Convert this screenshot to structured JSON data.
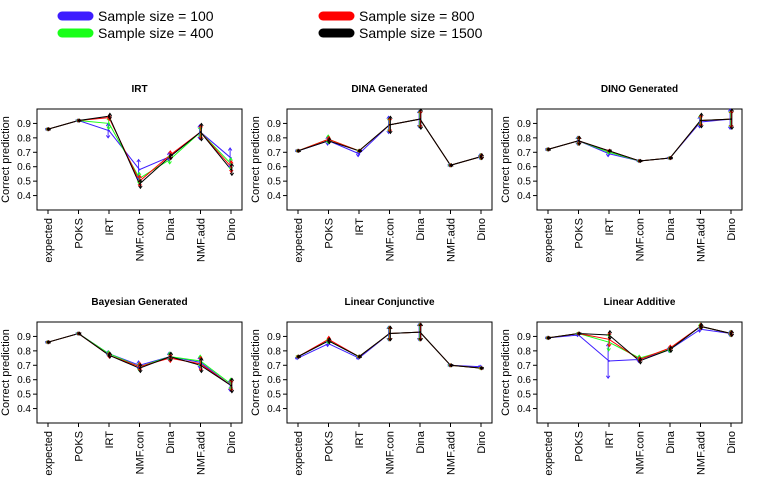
{
  "legend": {
    "items": [
      {
        "label": "Sample size = 100",
        "color": "#3d1dff"
      },
      {
        "label": "Sample size = 400",
        "color": "#19ff19"
      },
      {
        "label": "Sample size = 800",
        "color": "#ff0000"
      },
      {
        "label": "Sample size = 1500",
        "color": "#000000"
      }
    ]
  },
  "chart_data": [
    {
      "type": "line",
      "title": "IRT",
      "ylabel": "Correct prediction",
      "ylim": [
        0.3,
        1.0
      ],
      "yticks": [
        "0.4",
        "0.5",
        "0.6",
        "0.7",
        "0.8",
        "0.9"
      ],
      "categories": [
        "expected",
        "POKS",
        "IRT",
        "NMF.con",
        "Dina",
        "NMF.add",
        "Dino"
      ],
      "series": [
        {
          "name": "Sample size = 100",
          "values": [
            0.86,
            0.92,
            0.85,
            0.58,
            0.67,
            0.84,
            0.66
          ],
          "err": [
            0.01,
            0.01,
            0.05,
            0.07,
            0.03,
            0.05,
            0.07
          ]
        },
        {
          "name": "Sample size = 400",
          "values": [
            0.86,
            0.92,
            0.9,
            0.52,
            0.65,
            0.84,
            0.62
          ],
          "err": [
            0.01,
            0.01,
            0.04,
            0.04,
            0.03,
            0.04,
            0.04
          ]
        },
        {
          "name": "Sample size = 800",
          "values": [
            0.86,
            0.92,
            0.94,
            0.5,
            0.68,
            0.84,
            0.6
          ],
          "err": [
            0.01,
            0.01,
            0.02,
            0.04,
            0.03,
            0.05,
            0.04
          ]
        },
        {
          "name": "Sample size = 1500",
          "values": [
            0.86,
            0.92,
            0.95,
            0.48,
            0.67,
            0.84,
            0.58
          ],
          "err": [
            0.01,
            0.01,
            0.02,
            0.03,
            0.02,
            0.06,
            0.04
          ]
        }
      ]
    },
    {
      "type": "line",
      "title": "DINA Generated",
      "ylabel": "Correct prediction",
      "ylim": [
        0.3,
        1.0
      ],
      "yticks": [
        "0.4",
        "0.5",
        "0.6",
        "0.7",
        "0.8",
        "0.9"
      ],
      "categories": [
        "expected",
        "POKS",
        "IRT",
        "NMF.con",
        "Dina",
        "NMF.add",
        "Dino"
      ],
      "series": [
        {
          "name": "Sample size = 100",
          "values": [
            0.71,
            0.78,
            0.69,
            0.89,
            0.93,
            0.61,
            0.67
          ],
          "err": [
            0.01,
            0.03,
            0.02,
            0.06,
            0.06,
            0.01,
            0.02
          ]
        },
        {
          "name": "Sample size = 400",
          "values": [
            0.71,
            0.79,
            0.71,
            0.89,
            0.93,
            0.61,
            0.67
          ],
          "err": [
            0.01,
            0.03,
            0.01,
            0.05,
            0.06,
            0.01,
            0.02
          ]
        },
        {
          "name": "Sample size = 800",
          "values": [
            0.71,
            0.79,
            0.71,
            0.89,
            0.93,
            0.61,
            0.67
          ],
          "err": [
            0.01,
            0.02,
            0.01,
            0.05,
            0.06,
            0.01,
            0.02
          ]
        },
        {
          "name": "Sample size = 1500",
          "values": [
            0.71,
            0.78,
            0.71,
            0.89,
            0.93,
            0.61,
            0.67
          ],
          "err": [
            0.01,
            0.02,
            0.01,
            0.06,
            0.07,
            0.01,
            0.02
          ]
        }
      ]
    },
    {
      "type": "line",
      "title": "DINO Generated",
      "ylabel": "Correct prediction",
      "ylim": [
        0.3,
        1.0
      ],
      "yticks": [
        "0.4",
        "0.5",
        "0.6",
        "0.7",
        "0.8",
        "0.9"
      ],
      "categories": [
        "expected",
        "POKS",
        "IRT",
        "NMF.con",
        "Dina",
        "NMF.add",
        "Dino"
      ],
      "series": [
        {
          "name": "Sample size = 100",
          "values": [
            0.72,
            0.78,
            0.69,
            0.64,
            0.66,
            0.91,
            0.93
          ],
          "err": [
            0.01,
            0.03,
            0.02,
            0.01,
            0.01,
            0.04,
            0.07
          ]
        },
        {
          "name": "Sample size = 400",
          "values": [
            0.72,
            0.78,
            0.7,
            0.64,
            0.66,
            0.92,
            0.93
          ],
          "err": [
            0.01,
            0.03,
            0.01,
            0.01,
            0.01,
            0.04,
            0.06
          ]
        },
        {
          "name": "Sample size = 800",
          "values": [
            0.72,
            0.78,
            0.71,
            0.64,
            0.66,
            0.92,
            0.93
          ],
          "err": [
            0.01,
            0.03,
            0.01,
            0.01,
            0.01,
            0.04,
            0.06
          ]
        },
        {
          "name": "Sample size = 1500",
          "values": [
            0.72,
            0.78,
            0.71,
            0.64,
            0.66,
            0.92,
            0.93
          ],
          "err": [
            0.01,
            0.03,
            0.01,
            0.01,
            0.01,
            0.05,
            0.07
          ]
        }
      ]
    },
    {
      "type": "line",
      "title": "Bayesian Generated",
      "ylabel": "Correct prediction",
      "ylim": [
        0.3,
        1.0
      ],
      "yticks": [
        "0.4",
        "0.5",
        "0.6",
        "0.7",
        "0.8",
        "0.9"
      ],
      "categories": [
        "expected",
        "POKS",
        "IRT",
        "NMF.con",
        "Dina",
        "NMF.add",
        "Dino"
      ],
      "series": [
        {
          "name": "Sample size = 100",
          "values": [
            0.86,
            0.92,
            0.78,
            0.7,
            0.76,
            0.72,
            0.56
          ],
          "err": [
            0.01,
            0.01,
            0.02,
            0.03,
            0.03,
            0.04,
            0.04
          ]
        },
        {
          "name": "Sample size = 400",
          "values": [
            0.86,
            0.92,
            0.78,
            0.69,
            0.76,
            0.73,
            0.57
          ],
          "err": [
            0.01,
            0.01,
            0.02,
            0.03,
            0.03,
            0.04,
            0.04
          ]
        },
        {
          "name": "Sample size = 800",
          "values": [
            0.86,
            0.92,
            0.77,
            0.69,
            0.75,
            0.71,
            0.56
          ],
          "err": [
            0.01,
            0.01,
            0.02,
            0.03,
            0.03,
            0.05,
            0.04
          ]
        },
        {
          "name": "Sample size = 1500",
          "values": [
            0.86,
            0.92,
            0.77,
            0.68,
            0.76,
            0.7,
            0.56
          ],
          "err": [
            0.01,
            0.01,
            0.02,
            0.03,
            0.03,
            0.05,
            0.05
          ]
        }
      ]
    },
    {
      "type": "line",
      "title": "Linear Conjunctive",
      "ylabel": "Correct prediction",
      "ylim": [
        0.3,
        1.0
      ],
      "yticks": [
        "0.4",
        "0.5",
        "0.6",
        "0.7",
        "0.8",
        "0.9"
      ],
      "categories": [
        "expected",
        "POKS",
        "IRT",
        "NMF.con",
        "Dina",
        "NMF.add",
        "Dino"
      ],
      "series": [
        {
          "name": "Sample size = 100",
          "values": [
            0.75,
            0.85,
            0.75,
            0.92,
            0.93,
            0.7,
            0.69
          ],
          "err": [
            0.01,
            0.02,
            0.01,
            0.05,
            0.06,
            0.01,
            0.01
          ]
        },
        {
          "name": "Sample size = 400",
          "values": [
            0.76,
            0.87,
            0.76,
            0.92,
            0.93,
            0.7,
            0.68
          ],
          "err": [
            0.01,
            0.02,
            0.01,
            0.05,
            0.06,
            0.01,
            0.01
          ]
        },
        {
          "name": "Sample size = 800",
          "values": [
            0.76,
            0.88,
            0.76,
            0.92,
            0.93,
            0.7,
            0.68
          ],
          "err": [
            0.01,
            0.02,
            0.01,
            0.05,
            0.06,
            0.01,
            0.01
          ]
        },
        {
          "name": "Sample size = 1500",
          "values": [
            0.76,
            0.87,
            0.76,
            0.92,
            0.93,
            0.7,
            0.68
          ],
          "err": [
            0.01,
            0.02,
            0.01,
            0.05,
            0.06,
            0.01,
            0.01
          ]
        }
      ]
    },
    {
      "type": "line",
      "title": "Linear Additive",
      "ylabel": "Correct prediction",
      "ylim": [
        0.3,
        1.0
      ],
      "yticks": [
        "0.4",
        "0.5",
        "0.6",
        "0.7",
        "0.8",
        "0.9"
      ],
      "categories": [
        "expected",
        "POKS",
        "IRT",
        "NMF.con",
        "Dina",
        "NMF.add",
        "Dino"
      ],
      "series": [
        {
          "name": "Sample size = 100",
          "values": [
            0.89,
            0.91,
            0.73,
            0.74,
            0.81,
            0.95,
            0.92
          ],
          "err": [
            0.01,
            0.01,
            0.12,
            0.02,
            0.02,
            0.02,
            0.02
          ]
        },
        {
          "name": "Sample size = 400",
          "values": [
            0.89,
            0.92,
            0.86,
            0.75,
            0.81,
            0.97,
            0.92
          ],
          "err": [
            0.01,
            0.01,
            0.06,
            0.02,
            0.02,
            0.02,
            0.02
          ]
        },
        {
          "name": "Sample size = 800",
          "values": [
            0.89,
            0.92,
            0.88,
            0.74,
            0.82,
            0.97,
            0.92
          ],
          "err": [
            0.01,
            0.01,
            0.05,
            0.02,
            0.02,
            0.02,
            0.02
          ]
        },
        {
          "name": "Sample size = 1500",
          "values": [
            0.89,
            0.92,
            0.91,
            0.73,
            0.81,
            0.97,
            0.92
          ],
          "err": [
            0.01,
            0.01,
            0.03,
            0.02,
            0.02,
            0.02,
            0.02
          ]
        }
      ]
    }
  ]
}
